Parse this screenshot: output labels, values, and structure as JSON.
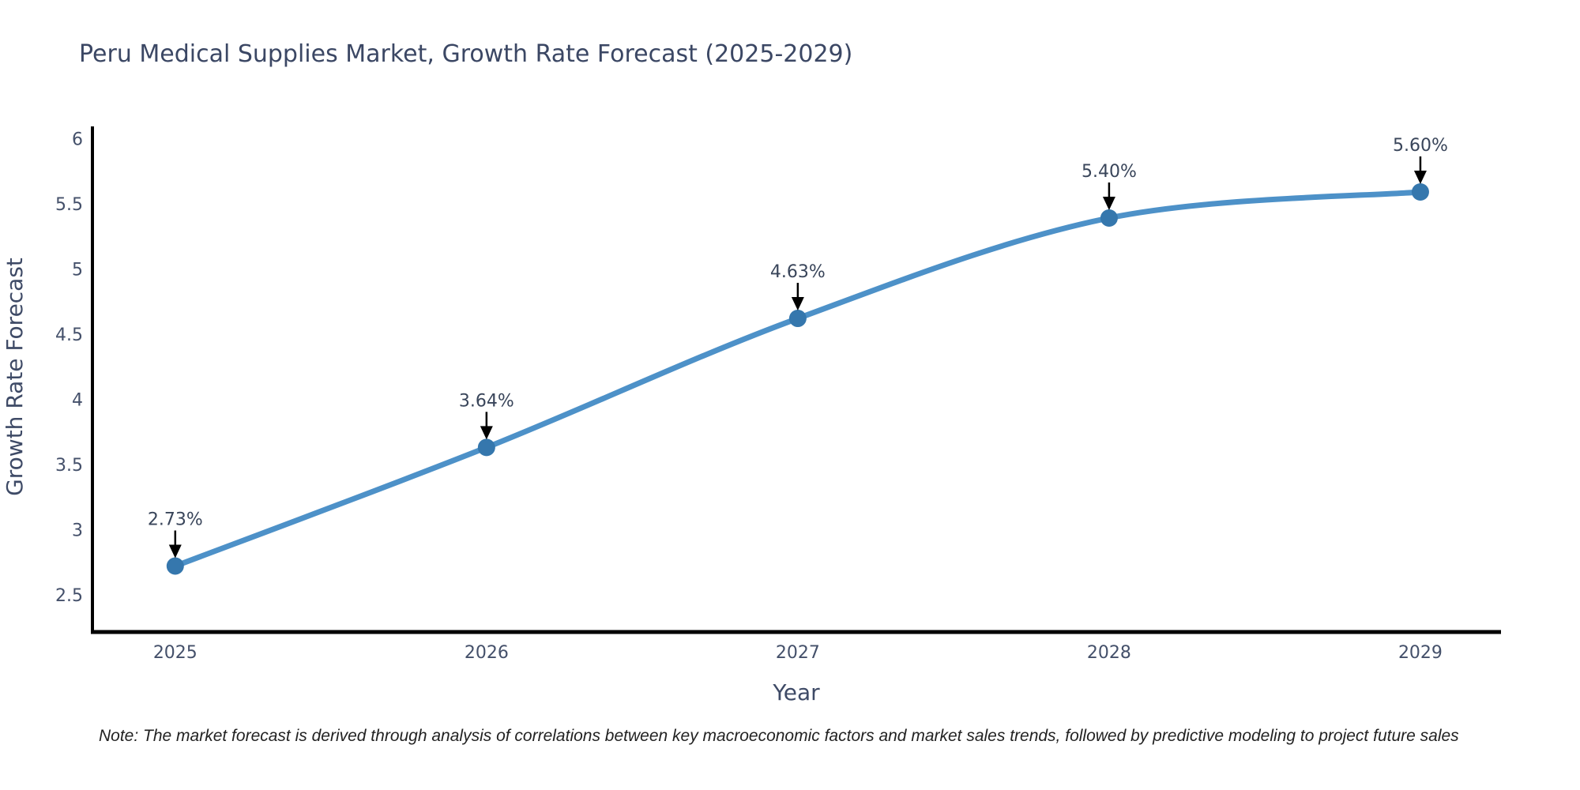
{
  "page": {
    "note": "Note: The market forecast is derived through analysis of correlations between key macroeconomic factors and market sales trends, followed by predictive modeling to project future sales"
  },
  "chart_data": {
    "type": "line",
    "title": "Peru Medical Supplies Market, Growth Rate Forecast (2025-2029)",
    "xlabel": "Year",
    "ylabel": "Growth Rate Forecast",
    "x": [
      2025,
      2026,
      2027,
      2028,
      2029
    ],
    "y": [
      2.73,
      3.64,
      4.63,
      5.4,
      5.6
    ],
    "point_labels": [
      "2.73%",
      "3.64%",
      "4.63%",
      "5.40%",
      "5.60%"
    ],
    "x_ticks": [
      "2025",
      "2026",
      "2027",
      "2028",
      "2029"
    ],
    "y_ticks": [
      "2.5",
      "3",
      "3.5",
      "4",
      "4.5",
      "5",
      "5.5",
      "6"
    ],
    "y_tick_values": [
      2.5,
      3,
      3.5,
      4,
      4.5,
      5,
      5.5,
      6
    ],
    "xlim": [
      2024.734,
      2029.259
    ],
    "ylim": [
      2.224,
      6.103
    ],
    "grid": false,
    "legend": false,
    "line_shape": "spline",
    "annotation_arrows": "down",
    "colors": {
      "line": "#4d91c8",
      "marker": "#3577ad",
      "spine": "#000000",
      "tick_text": "#44506a",
      "title_text": "#3b4764",
      "axis_title_text": "#3e4a66",
      "label_text": "#39455a",
      "arrow": "#000000",
      "note_text": "#222222"
    }
  }
}
